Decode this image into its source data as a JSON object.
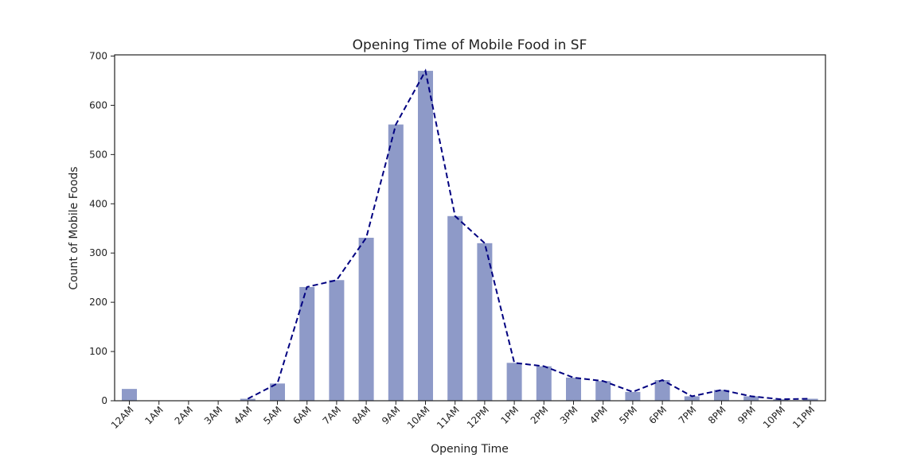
{
  "chart_data": {
    "type": "bar",
    "title": "Opening Time of Mobile Food in SF",
    "xlabel": "Opening Time",
    "ylabel": "Count of Mobile Foods",
    "categories": [
      "12AM",
      "1AM",
      "2AM",
      "3AM",
      "4AM",
      "5AM",
      "6AM",
      "7AM",
      "8AM",
      "9AM",
      "10AM",
      "11AM",
      "12PM",
      "1PM",
      "2PM",
      "3PM",
      "4PM",
      "5PM",
      "6PM",
      "7PM",
      "8PM",
      "9PM",
      "10PM",
      "11PM"
    ],
    "values": [
      24,
      0,
      0,
      0,
      4,
      35,
      231,
      245,
      331,
      561,
      670,
      375,
      320,
      77,
      70,
      47,
      40,
      18,
      42,
      9,
      22,
      9,
      3,
      4
    ],
    "line_overlay": {
      "style": "dashed",
      "start_index": 4,
      "values": [
        4,
        35,
        231,
        245,
        331,
        561,
        670,
        375,
        320,
        77,
        70,
        47,
        40,
        18,
        42,
        9,
        22,
        9,
        3,
        4
      ]
    },
    "ylim": [
      0,
      700
    ],
    "yticks": [
      0,
      100,
      200,
      300,
      400,
      500,
      600,
      700
    ],
    "grid": false,
    "legend": "none",
    "colors": {
      "bar": "#8e9ac8",
      "line": "#000080",
      "axis": "#222222"
    }
  }
}
